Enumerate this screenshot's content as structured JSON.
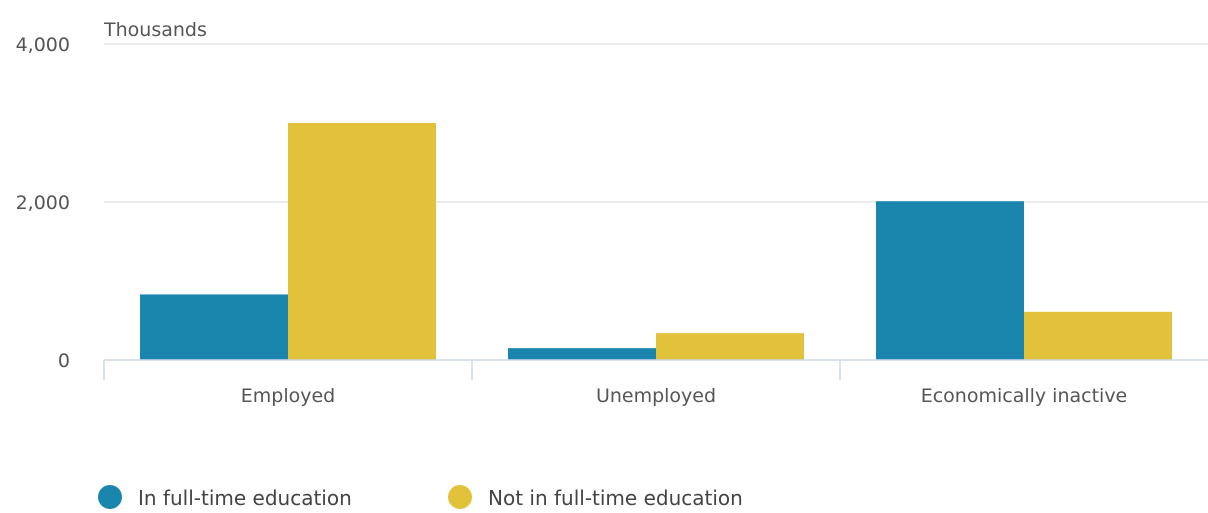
{
  "chart_data": {
    "type": "bar",
    "unit_label": "Thousands",
    "categories": [
      "Employed",
      "Unemployed",
      "Economically inactive"
    ],
    "series": [
      {
        "name": "In full-time education",
        "color": "#1b86ad",
        "values": [
          830,
          150,
          2010
        ]
      },
      {
        "name": "Not in full-time education",
        "color": "#e2c23a",
        "values": [
          3000,
          340,
          610
        ]
      }
    ],
    "y_ticks": [
      {
        "value": 0,
        "label": "0"
      },
      {
        "value": 2000,
        "label": "2,000"
      },
      {
        "value": 4000,
        "label": "4,000"
      }
    ],
    "ylim": [
      0,
      4000
    ],
    "grid": true,
    "legend_position": "bottom-left"
  }
}
